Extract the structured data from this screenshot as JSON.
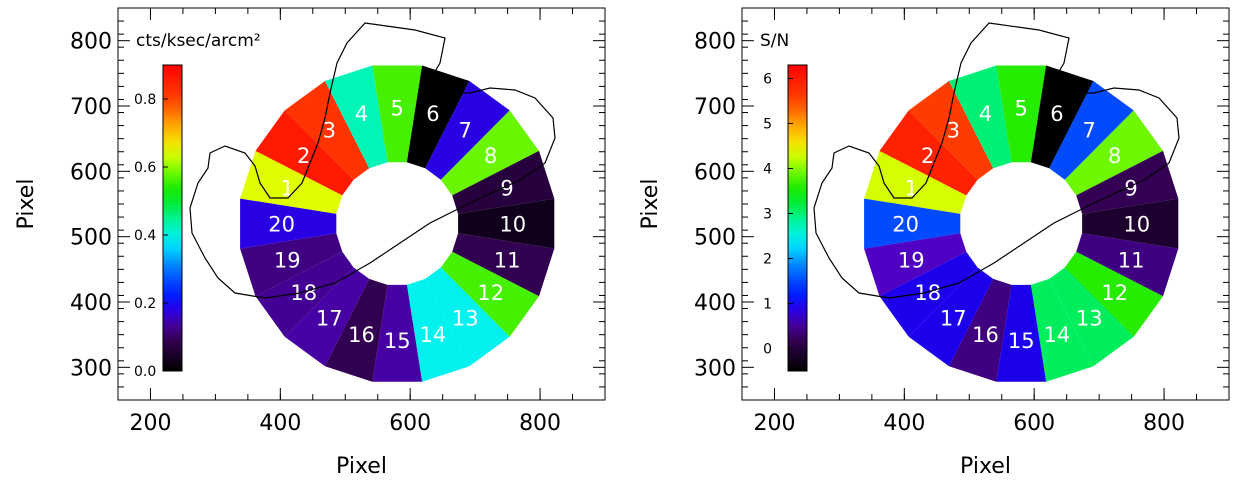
{
  "chart_data": [
    {
      "type": "polar-sector-map",
      "xlabel": "Pixel",
      "ylabel": "Pixel",
      "xlim": [
        150,
        900
      ],
      "ylim": [
        250,
        850
      ],
      "x_ticks": [
        "200",
        "400",
        "600",
        "800"
      ],
      "x_tick_values": [
        200,
        400,
        600,
        800
      ],
      "y_ticks": [
        "300",
        "400",
        "500",
        "600",
        "700",
        "800"
      ],
      "y_tick_values": [
        300,
        400,
        500,
        600,
        700,
        800
      ],
      "grid": false,
      "colorbar_label": "cts/ksec/arcm²",
      "colorbar_range": [
        0.0,
        0.9
      ],
      "colorbar_ticks": [
        "0.0",
        "0.2",
        "0.4",
        "0.6",
        "0.8"
      ],
      "colorbar_tick_values": [
        0.0,
        0.2,
        0.4,
        0.6,
        0.8
      ],
      "ring_center": [
        580,
        520
      ],
      "ring_radius_inner": 95,
      "ring_radius_outer": 245,
      "sectors": [
        "1",
        "2",
        "3",
        "4",
        "5",
        "6",
        "7",
        "8",
        "9",
        "10",
        "11",
        "12",
        "13",
        "14",
        "15",
        "16",
        "17",
        "18",
        "19",
        "20"
      ],
      "values": [
        0.64,
        0.86,
        0.82,
        0.43,
        0.56,
        0.0,
        0.18,
        0.58,
        0.07,
        0.03,
        0.09,
        0.56,
        0.39,
        0.39,
        0.14,
        0.09,
        0.14,
        0.13,
        0.12,
        0.18
      ]
    },
    {
      "type": "polar-sector-map",
      "xlabel": "Pixel",
      "ylabel": "Pixel",
      "xlim": [
        150,
        900
      ],
      "ylim": [
        250,
        850
      ],
      "x_ticks": [
        "200",
        "400",
        "600",
        "800"
      ],
      "x_tick_values": [
        200,
        400,
        600,
        800
      ],
      "y_ticks": [
        "300",
        "400",
        "500",
        "600",
        "700",
        "800"
      ],
      "y_tick_values": [
        300,
        400,
        500,
        600,
        700,
        800
      ],
      "grid": false,
      "colorbar_label": "S/N",
      "colorbar_range": [
        -0.5,
        6.3
      ],
      "colorbar_ticks": [
        "0",
        "1",
        "2",
        "3",
        "4",
        "5",
        "6"
      ],
      "colorbar_tick_values": [
        0,
        1,
        2,
        3,
        4,
        5,
        6
      ],
      "ring_center": [
        580,
        520
      ],
      "ring_radius_inner": 95,
      "ring_radius_outer": 245,
      "sectors": [
        "1",
        "2",
        "3",
        "4",
        "5",
        "6",
        "7",
        "8",
        "9",
        "10",
        "11",
        "12",
        "13",
        "14",
        "15",
        "16",
        "17",
        "18",
        "19",
        "20"
      ],
      "values": [
        4.3,
        5.9,
        5.6,
        3.0,
        3.6,
        -0.5,
        1.5,
        3.9,
        0.2,
        -0.1,
        0.4,
        3.6,
        3.1,
        3.1,
        0.9,
        0.4,
        0.9,
        0.9,
        0.7,
        1.5
      ]
    }
  ]
}
